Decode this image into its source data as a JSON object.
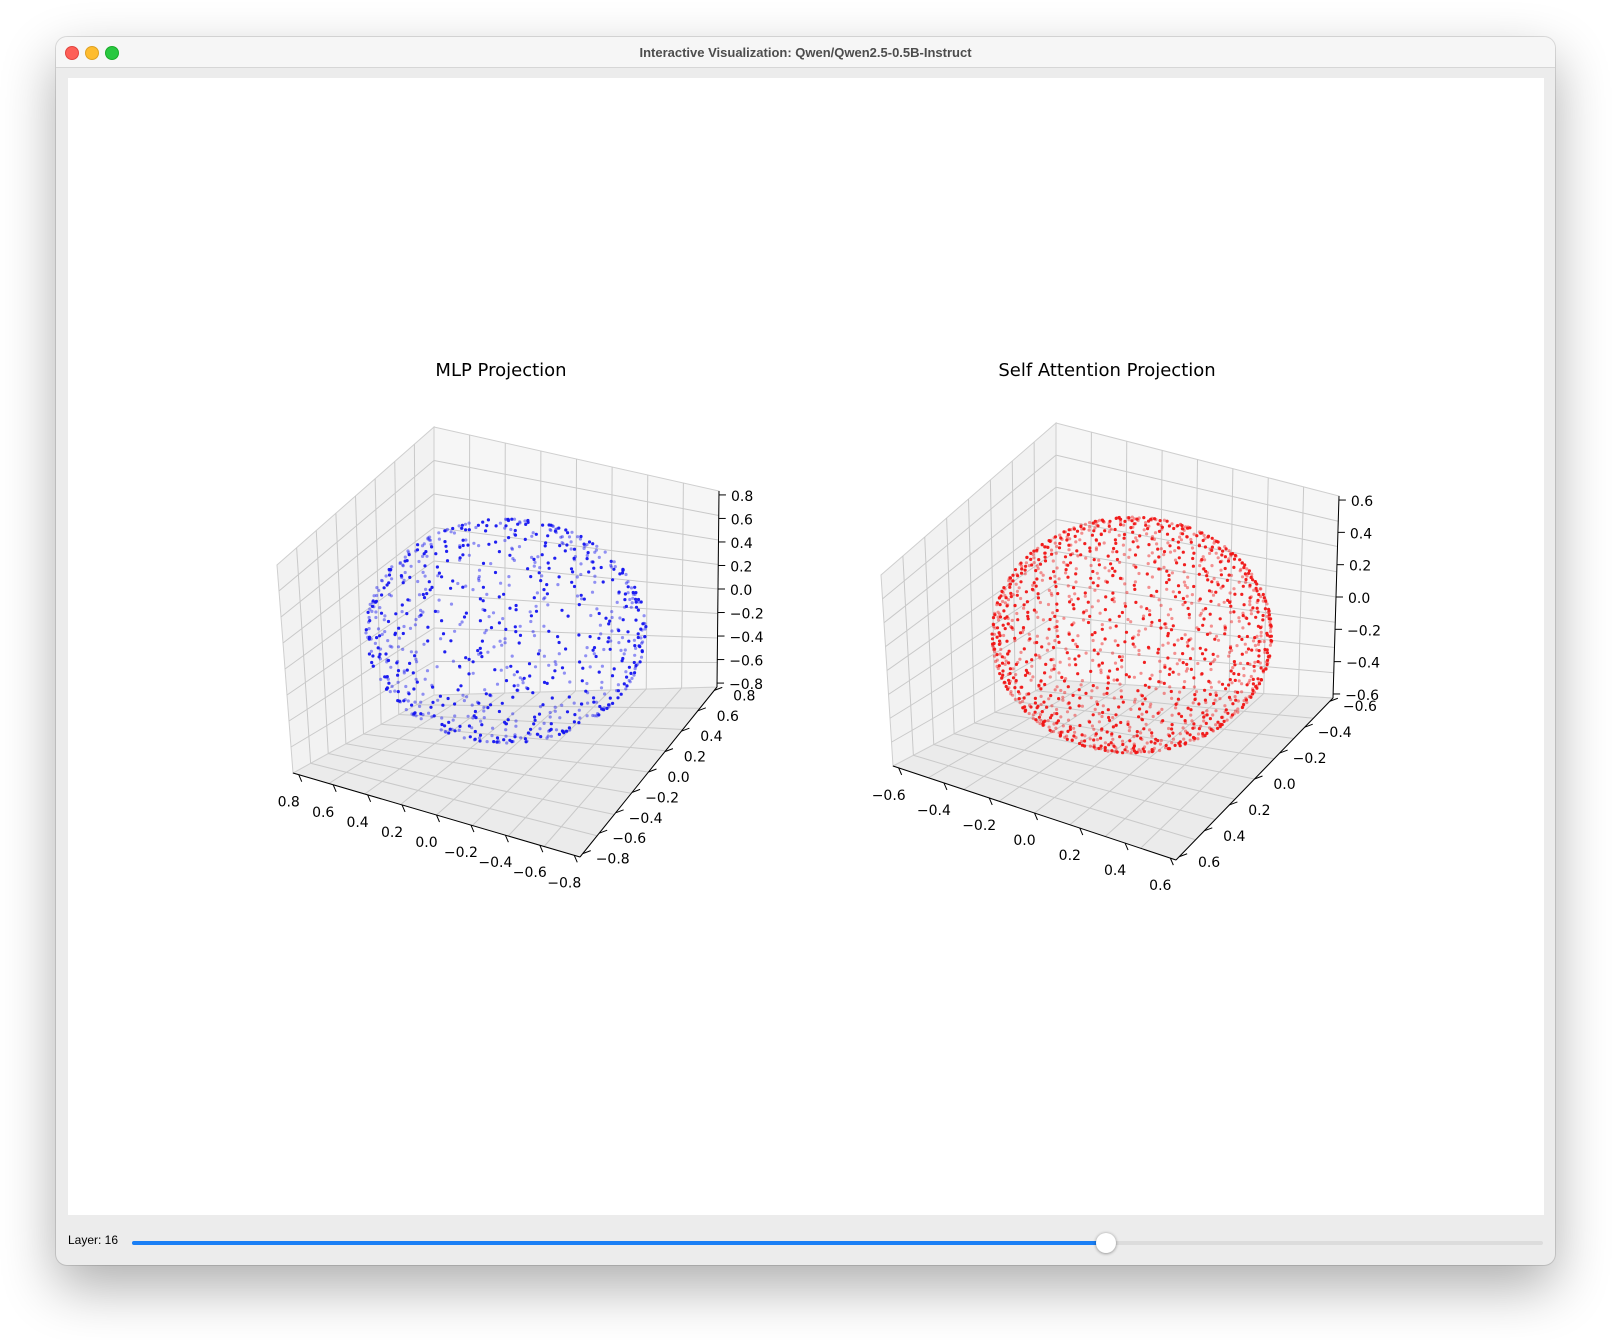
{
  "window": {
    "title": "Interactive Visualization: Qwen/Qwen2.5-0.5B-Instruct"
  },
  "colors": {
    "mlp": "#1414f0",
    "attn": "#f01414",
    "accent": "#1a7ff5"
  },
  "slider": {
    "label": "Layer: 16",
    "value": 16,
    "fraction": 0.69
  },
  "chart_data": [
    {
      "type": "scatter",
      "projection": "3d",
      "title": "MLP Projection",
      "color": "blue",
      "shape": "spherical shell of points",
      "point_count_approx": 800,
      "radius": 0.7,
      "x_ticks": [
        "0.8",
        "0.6",
        "0.4",
        "0.2",
        "0.0",
        "−0.2",
        "−0.4",
        "−0.6",
        "−0.8"
      ],
      "y_ticks": [
        "−0.8",
        "−0.6",
        "−0.4",
        "−0.2",
        "0.0",
        "0.2",
        "0.4",
        "0.6",
        "0.8"
      ],
      "z_ticks": [
        "0.8",
        "0.6",
        "0.4",
        "0.2",
        "0.0",
        "−0.2",
        "−0.4",
        "−0.6",
        "−0.8"
      ],
      "xlim": [
        -0.8,
        0.8
      ],
      "ylim": [
        -0.8,
        0.8
      ],
      "zlim": [
        -0.8,
        0.8
      ],
      "grid": true
    },
    {
      "type": "scatter",
      "projection": "3d",
      "title": "Self Attention Projection",
      "color": "red",
      "shape": "spherical shell of points",
      "point_count_approx": 1400,
      "radius": 0.7,
      "x_ticks": [
        "−0.6",
        "−0.4",
        "−0.2",
        "0.0",
        "0.2",
        "0.4",
        "0.6"
      ],
      "y_ticks": [
        "0.6",
        "0.4",
        "0.2",
        "0.0",
        "−0.2",
        "−0.4",
        "−0.6"
      ],
      "z_ticks": [
        "0.6",
        "0.4",
        "0.2",
        "0.0",
        "−0.2",
        "−0.4",
        "−0.6"
      ],
      "xlim": [
        -0.7,
        0.7
      ],
      "ylim": [
        -0.7,
        0.7
      ],
      "zlim": [
        -0.7,
        0.7
      ],
      "grid": true
    }
  ]
}
